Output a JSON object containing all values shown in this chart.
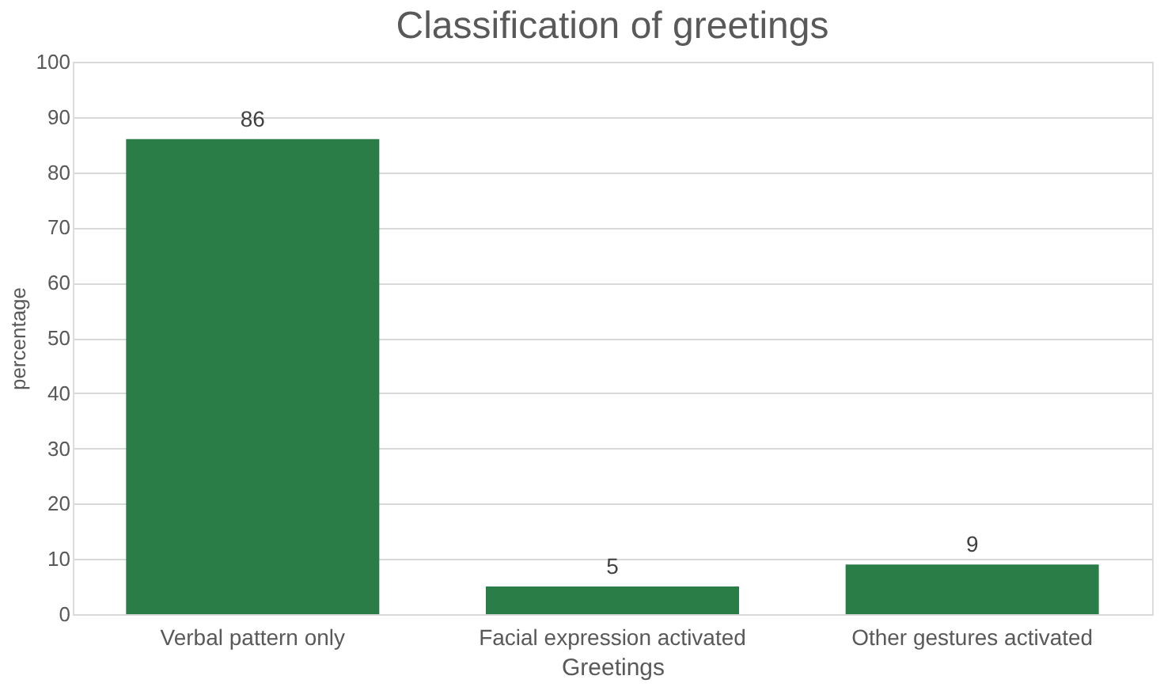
{
  "chart_data": {
    "type": "bar",
    "title": "Classification of greetings",
    "xlabel": "Greetings",
    "ylabel": "percentage",
    "categories": [
      "Verbal pattern only",
      "Facial expression activated",
      "Other gestures activated"
    ],
    "values": [
      86,
      5,
      9
    ],
    "color": "#2a7d46",
    "data_labels": true,
    "ylim": [
      0,
      100
    ],
    "yticks": [
      0,
      10,
      20,
      30,
      40,
      50,
      60,
      70,
      80,
      90,
      100
    ],
    "grid": "y"
  }
}
